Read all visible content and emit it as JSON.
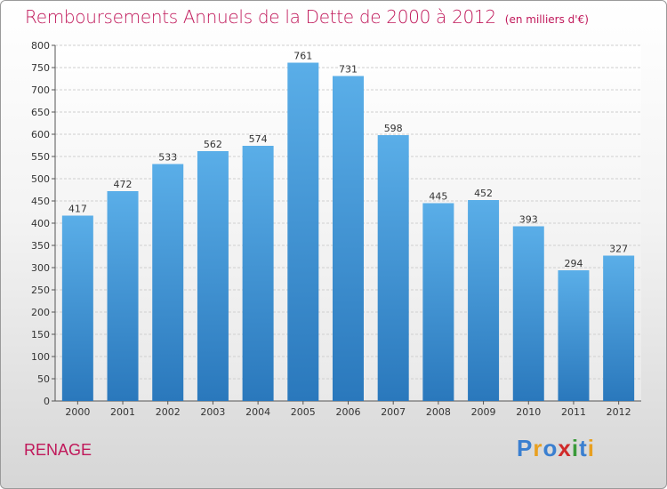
{
  "title": "Remboursements Annuels de la Dette de 2000 à 2012",
  "subtitle": "(en milliers d'€)",
  "commune": "RENAGE",
  "logo": {
    "text": "Proxiti",
    "letters": [
      {
        "ch": "P",
        "color": "#3a7fd0"
      },
      {
        "ch": "r",
        "color": "#e8a020"
      },
      {
        "ch": "o",
        "color": "#3a7fd0"
      },
      {
        "ch": "x",
        "color": "#d02a2a"
      },
      {
        "ch": "i",
        "color": "#3a9a3a"
      },
      {
        "ch": "t",
        "color": "#3a7fd0"
      },
      {
        "ch": "i",
        "color": "#e8a020"
      }
    ]
  },
  "colors": {
    "bar_top": "#5aaee8",
    "bar_bottom": "#2a78bc",
    "accent": "#c0185a"
  },
  "chart_data": {
    "type": "bar",
    "title": "Remboursements Annuels de la Dette de 2000 à 2012",
    "subtitle": "(en milliers d'€)",
    "categories": [
      "2000",
      "2001",
      "2002",
      "2003",
      "2004",
      "2005",
      "2006",
      "2007",
      "2008",
      "2009",
      "2010",
      "2011",
      "2012"
    ],
    "values": [
      417,
      472,
      533,
      562,
      574,
      761,
      731,
      598,
      445,
      452,
      393,
      294,
      327
    ],
    "ylim": [
      0,
      800
    ],
    "yticks": [
      0,
      50,
      100,
      150,
      200,
      250,
      300,
      350,
      400,
      450,
      500,
      550,
      600,
      650,
      700,
      750,
      800
    ],
    "grid": true,
    "xlabel": "",
    "ylabel": ""
  }
}
